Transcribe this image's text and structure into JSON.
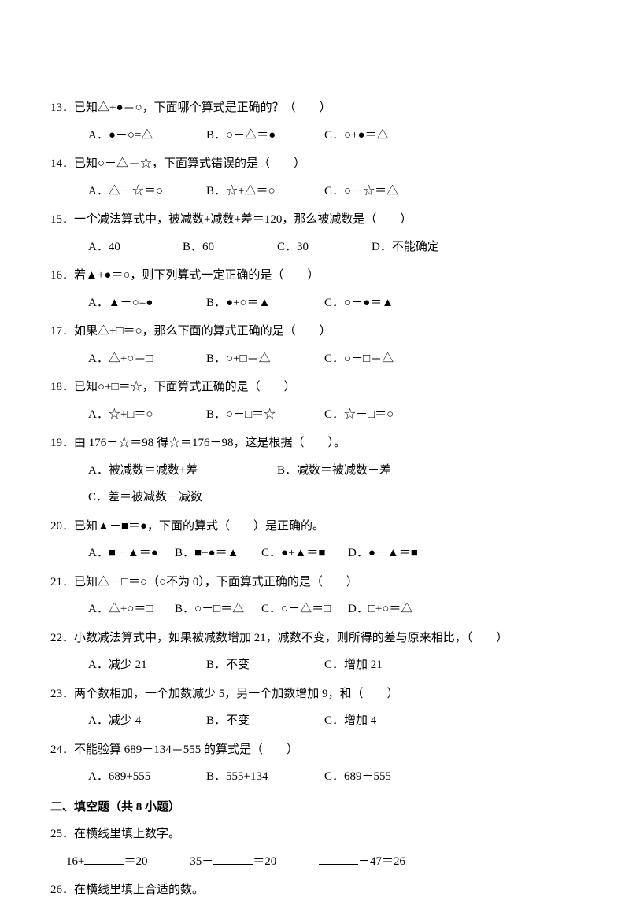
{
  "q13": {
    "stem": "13．已知△+●＝○，下面哪个算式是正确的？（　　）",
    "a": "A．●－○=△",
    "b": "B．○－△＝●",
    "c": "C．○+●＝△"
  },
  "q14": {
    "stem": "14．已知○－△＝☆，下面算式错误的是（　　）",
    "a": "A．△－☆＝○",
    "b": "B．☆+△＝○",
    "c": "C．○－☆＝△"
  },
  "q15": {
    "stem": "15．一个减法算式中，被减数+减数+差＝120，那么被减数是（　　）",
    "a": "A．40",
    "b": "B．60",
    "c": "C．30",
    "d": "D．不能确定"
  },
  "q16": {
    "stem": "16．若▲+●＝○，则下列算式一定正确的是（　　）",
    "a": "A．▲－○=●",
    "b": "B．●+○＝▲",
    "c": "C．○－●＝▲"
  },
  "q17": {
    "stem": "17．如果△+□＝○，那么下面的算式正确的是（　　）",
    "a": "A．△+○＝□",
    "b": "B．○+□＝△",
    "c": "C．○－□＝△"
  },
  "q18": {
    "stem": "18．已知○+□＝☆，下面算式正确的是（　　）",
    "a": "A．☆+□＝○",
    "b": "B．○－□＝☆",
    "c": "C．☆－□＝○"
  },
  "q19": {
    "stem": "19．由 176－☆＝98 得☆＝176－98，这是根据（　　）。",
    "a": "A．被减数＝减数+差",
    "b": "B．减数＝被减数－差",
    "c": "C．差＝被减数－减数"
  },
  "q20": {
    "stem": "20．已知▲－■＝●，下面的算式（　　）是正确的。",
    "a": "A．■－▲＝●",
    "b": "B．■+●＝▲",
    "c": "C．●+▲＝■",
    "d": "D．●－▲＝■"
  },
  "q21": {
    "stem": "21．已知△－□＝○（○不为 0），下面算式正确的是（　　）",
    "a": "A．△+○＝□",
    "b": "B．○－□＝△",
    "c": "C．○－△＝□",
    "d": "D．□+○＝△"
  },
  "q22": {
    "stem": "22．小数减法算式中，如果被减数增加 21，减数不变，则所得的差与原来相比，（　　）",
    "a": "A．减少 21",
    "b": "B．不变",
    "c": "C．增加 21"
  },
  "q23": {
    "stem": "23．两个数相加，一个加数减少 5，另一个加数增加 9，和（　　）",
    "a": "A．减少 4",
    "b": "B．不变",
    "c": "C．增加 4"
  },
  "q24": {
    "stem": "24．不能验算 689－134＝555 的算式是（　　）",
    "a": "A．689+555",
    "b": "B．555+134",
    "c": "C．689－555"
  },
  "section2": "二、填空题（共 8 小题）",
  "q25": {
    "stem": "25．在横线里填上数字。",
    "f1a": "16+",
    "f1b": "＝20",
    "f2a": "35－",
    "f2b": "＝20",
    "f3a": "",
    "f3b": "－47＝26"
  },
  "q26": {
    "stem": "26．在横线里填上合适的数。"
  }
}
